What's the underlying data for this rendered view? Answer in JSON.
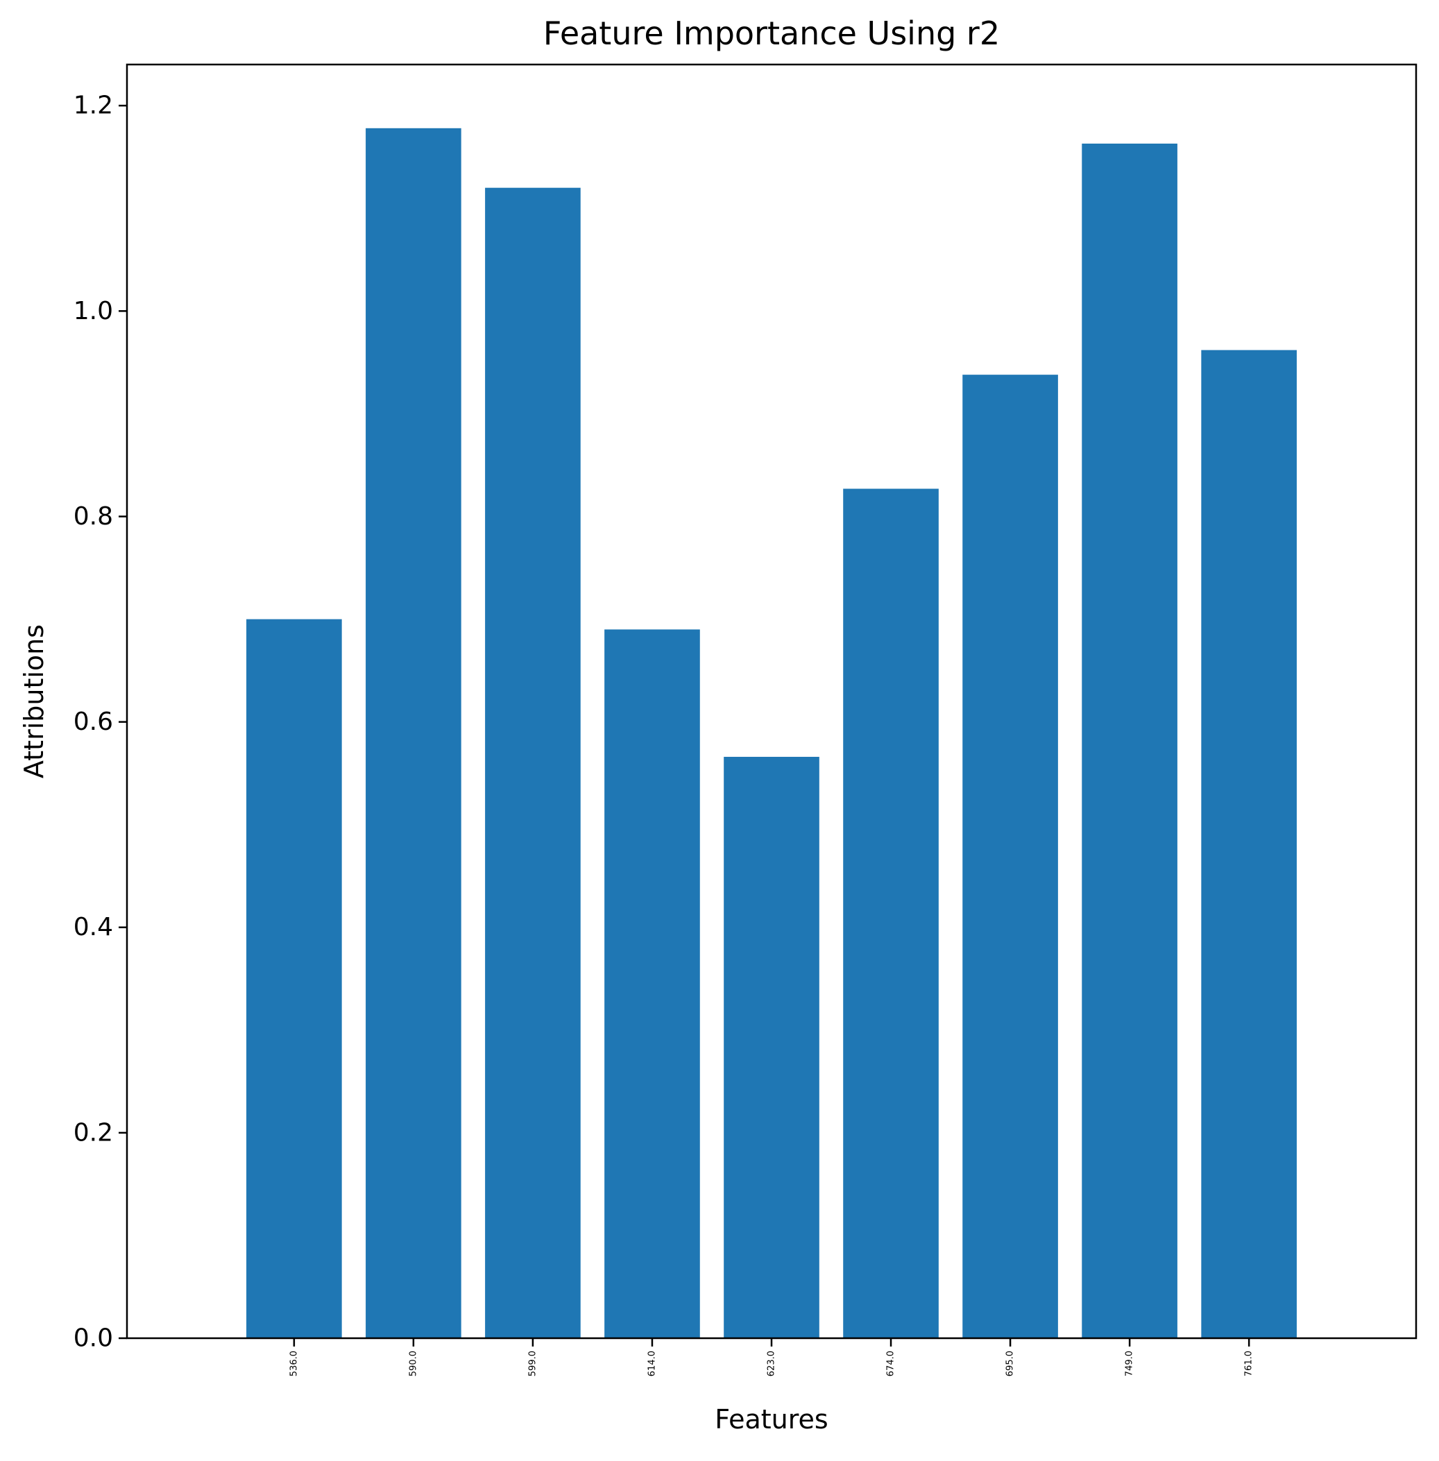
{
  "chart_data": {
    "type": "bar",
    "title": "Feature Importance Using r2",
    "xlabel": "Features",
    "ylabel": "Attributions",
    "categories": [
      "536.0",
      "590.0",
      "599.0",
      "614.0",
      "623.0",
      "674.0",
      "695.0",
      "749.0",
      "761.0"
    ],
    "values": [
      0.7,
      1.178,
      1.12,
      0.69,
      0.566,
      0.827,
      0.938,
      1.163,
      0.962
    ],
    "ylim": [
      0,
      1.24
    ],
    "yticks": [
      "0.0",
      "0.2",
      "0.4",
      "0.6",
      "0.8",
      "1.0",
      "1.2"
    ],
    "bar_color": "#1f77b4",
    "grid": false,
    "legend": null
  }
}
